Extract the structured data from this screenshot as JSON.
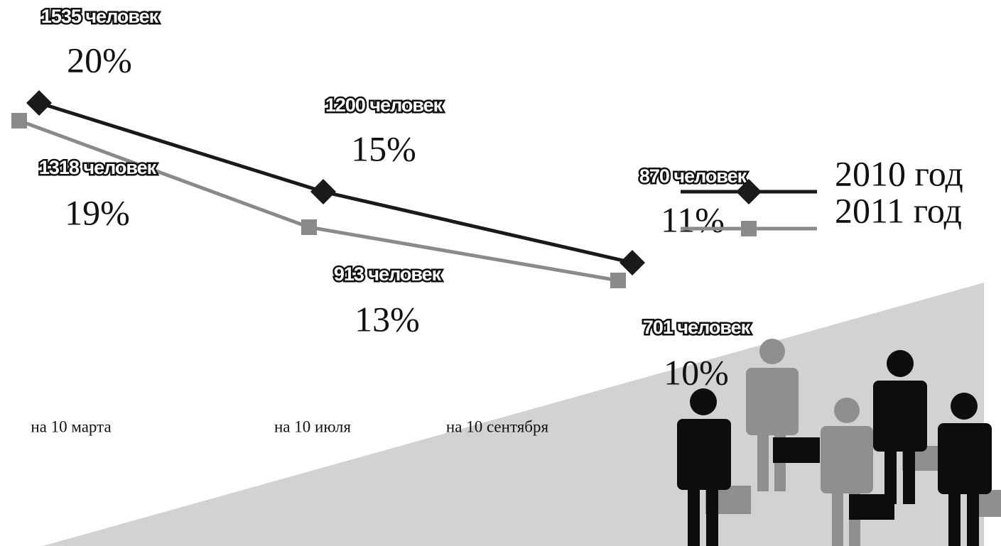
{
  "chart_data": {
    "type": "line",
    "categories": [
      "на 10 марта",
      "на 10 июля",
      "на 10 сентября"
    ],
    "series": [
      {
        "name": "2010 год",
        "color": "#1a1a1a",
        "marker": "diamond",
        "values": [
          20,
          15,
          11
        ],
        "value_labels": [
          "20%",
          "15%",
          "11%"
        ],
        "annotations": [
          "1535 человек",
          "1200 человек",
          "870 человек"
        ]
      },
      {
        "name": "2011 год",
        "color": "#8a8a8a",
        "marker": "square",
        "values": [
          19,
          13,
          10
        ],
        "value_labels": [
          "19%",
          "13%",
          "10%"
        ],
        "annotations": [
          "1318 человек",
          "913 человек",
          "701 человек"
        ]
      }
    ]
  }
}
